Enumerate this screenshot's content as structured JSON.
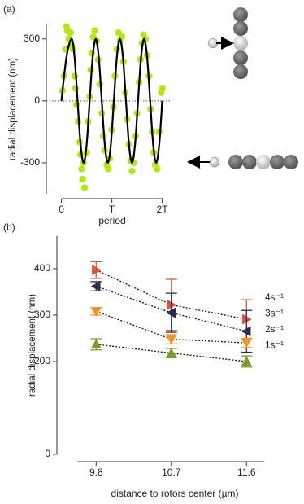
{
  "chart_data": [
    {
      "type": "scatter",
      "label": "(a)",
      "ylabel": "radial displacement (nm)",
      "xlabel": "period",
      "xlim": [
        -0.3,
        2.2
      ],
      "xticks": [
        0,
        {
          "value": 1,
          "label": "T"
        },
        {
          "value": 2,
          "label": "2T"
        }
      ],
      "ylim": [
        -450,
        370
      ],
      "yticks": [
        -300,
        0,
        300
      ],
      "hline": 0,
      "points": {
        "color": "#b5e61d",
        "x": [
          0.02,
          0.05,
          0.08,
          0.1,
          0.12,
          0.15,
          0.18,
          0.2,
          0.23,
          0.26,
          0.28,
          0.3,
          0.33,
          0.36,
          0.38,
          0.4,
          0.42,
          0.44,
          0.46,
          0.5,
          0.53,
          0.56,
          0.58,
          0.6,
          0.63,
          0.66,
          0.7,
          0.73,
          0.76,
          0.8,
          0.83,
          0.86,
          0.9,
          0.93,
          0.96,
          1.0,
          1.03,
          1.06,
          1.1,
          1.13,
          1.16,
          1.2,
          1.23,
          1.27,
          1.3,
          1.34,
          1.37,
          1.4,
          1.43,
          1.47,
          1.5,
          1.54,
          1.57,
          1.6,
          1.63,
          1.67,
          1.7,
          1.74,
          1.77,
          1.8,
          1.83,
          1.86,
          1.9,
          1.94,
          1.98,
          2.0
        ],
        "y": [
          50,
          120,
          250,
          360,
          340,
          300,
          330,
          270,
          250,
          120,
          60,
          -20,
          -100,
          -200,
          -260,
          -330,
          -380,
          -300,
          -420,
          -250,
          -100,
          20,
          150,
          230,
          310,
          340,
          290,
          200,
          80,
          -60,
          -170,
          -240,
          -310,
          -330,
          -280,
          -140,
          -30,
          120,
          250,
          330,
          290,
          310,
          190,
          40,
          -90,
          -210,
          -290,
          -340,
          -300,
          -170,
          -60,
          90,
          200,
          280,
          320,
          300,
          220,
          120,
          -40,
          -150,
          -250,
          -310,
          -330,
          -150,
          40,
          60
        ]
      },
      "curve": {
        "color": "#000000",
        "x": [
          0,
          0.1,
          0.2,
          0.26,
          0.32,
          0.38,
          0.44,
          0.5,
          0.56,
          0.62,
          0.68,
          0.74,
          0.8,
          0.86,
          0.92,
          0.98,
          1.04,
          1.1,
          1.16,
          1.22,
          1.28,
          1.34,
          1.4,
          1.46,
          1.52,
          1.58,
          1.64,
          1.7,
          1.76,
          1.82,
          1.88,
          1.94,
          2.0
        ],
        "y": [
          0,
          212,
          300,
          212,
          0,
          -212,
          -300,
          -212,
          0,
          212,
          300,
          212,
          0,
          -212,
          -300,
          -212,
          0,
          212,
          300,
          212,
          0,
          -212,
          -300,
          -212,
          0,
          212,
          300,
          212,
          0,
          -212,
          -300,
          -212,
          0
        ]
      }
    },
    {
      "type": "line",
      "label": "(b)",
      "ylabel": "radial displacement (nm)",
      "xlabel": "distance to rotors center (µm)",
      "x": [
        9.8,
        10.7,
        11.6
      ],
      "xlim": [
        9.33,
        11.86
      ],
      "xticks": [
        9.8,
        10.7,
        11.6
      ],
      "ylim": [
        0,
        470
      ],
      "yticks": [
        0,
        200,
        300,
        400
      ],
      "series": [
        {
          "name": "4s⁻¹",
          "color": "#d9553a",
          "marker": "triangle-right",
          "values": [
            397,
            322,
            291
          ],
          "errors": [
            18,
            55,
            42
          ]
        },
        {
          "name": "3s⁻¹",
          "color": "#2d2a4a",
          "marker": "triangle-left",
          "values": [
            362,
            305,
            265
          ],
          "errors": [
            10,
            42,
            45
          ]
        },
        {
          "name": "2s⁻¹",
          "color": "#f0952c",
          "marker": "triangle-down",
          "values": [
            308,
            248,
            240
          ],
          "errors": [
            8,
            10,
            10
          ]
        },
        {
          "name": "1s⁻¹",
          "color": "#7a9a2a",
          "marker": "triangle-up",
          "values": [
            237,
            218,
            200
          ],
          "errors": [
            12,
            10,
            12
          ]
        }
      ]
    }
  ]
}
